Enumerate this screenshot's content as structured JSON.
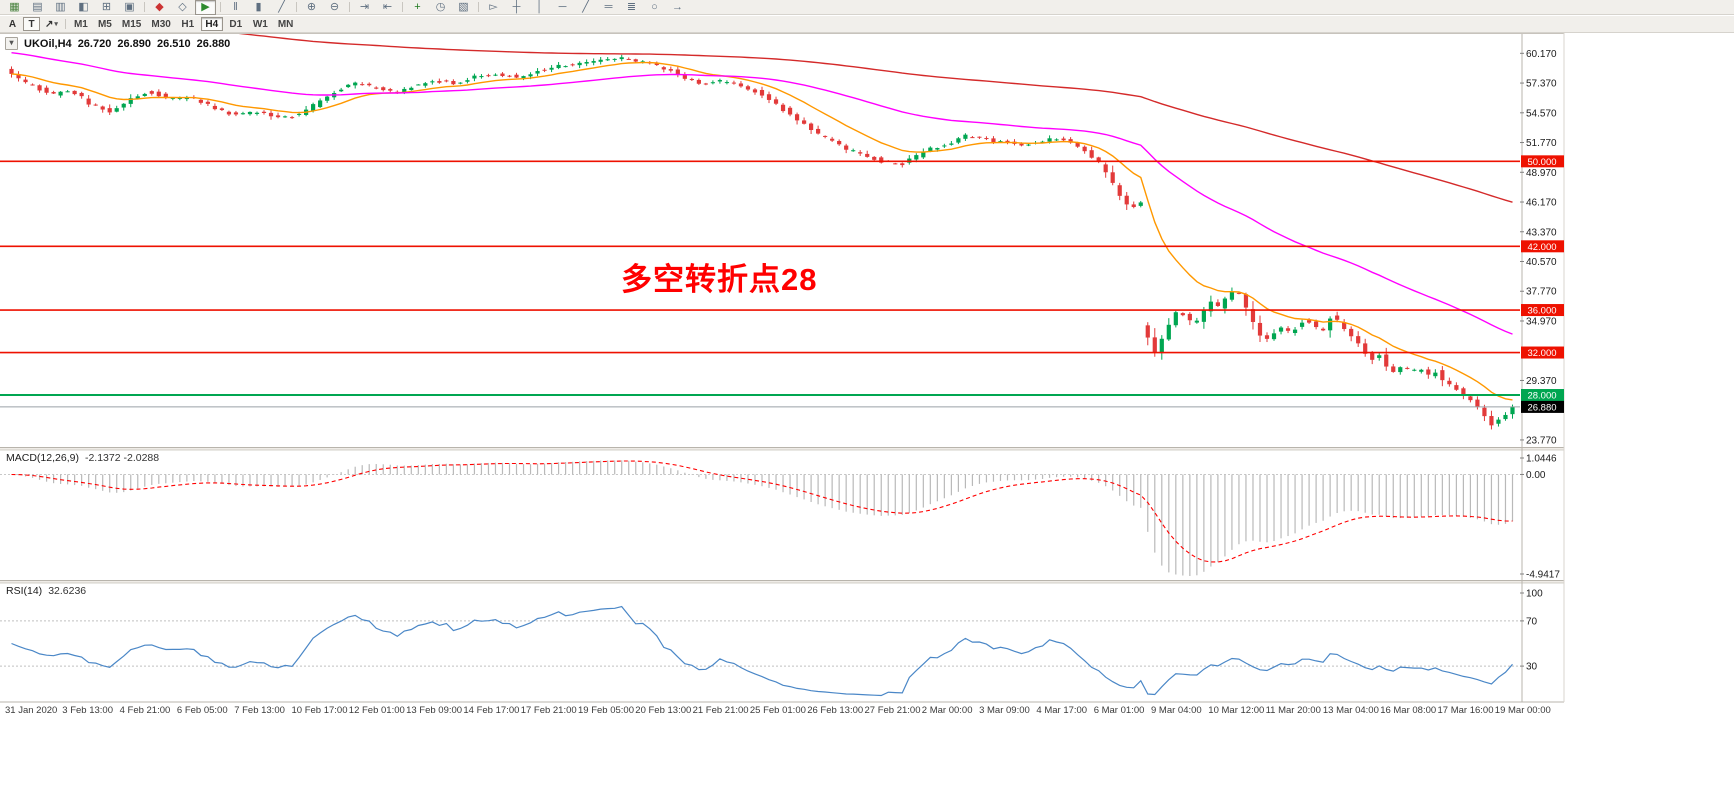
{
  "toolbar": {
    "row1_groups": [
      [
        {
          "name": "new-chart",
          "glyph": "▦",
          "color": "#45803b"
        },
        {
          "name": "profiles",
          "glyph": "▤",
          "color": "#5f6f80"
        },
        {
          "name": "market-watch",
          "glyph": "▥",
          "color": "#5f6f80"
        },
        {
          "name": "data-window",
          "glyph": "◧",
          "color": "#5f6f80"
        },
        {
          "name": "navigator",
          "glyph": "⊞",
          "color": "#5f6f80"
        },
        {
          "name": "terminal",
          "glyph": "▣",
          "color": "#5f6f80"
        }
      ],
      [
        {
          "name": "new-order",
          "glyph": "◆",
          "color": "#cc3333"
        },
        {
          "name": "metaeditor",
          "glyph": "◇",
          "color": "#5f6f80"
        },
        {
          "name": "autotrading",
          "glyph": "▶",
          "color": "#2e8b2e",
          "pressed": true
        }
      ],
      [
        {
          "name": "bar-chart",
          "glyph": "‖",
          "color": "#5f6f80"
        },
        {
          "name": "candlestick-chart",
          "glyph": "▮",
          "color": "#5f6f80"
        },
        {
          "name": "line-chart",
          "glyph": "╱",
          "color": "#5f6f80"
        }
      ],
      [
        {
          "name": "zoom-in",
          "glyph": "⊕",
          "color": "#5f6f80"
        },
        {
          "name": "zoom-out",
          "glyph": "⊖",
          "color": "#5f6f80"
        }
      ],
      [
        {
          "name": "auto-scroll",
          "glyph": "⇥",
          "color": "#5f6f80"
        },
        {
          "name": "chart-shift",
          "glyph": "⇤",
          "color": "#5f6f80"
        }
      ],
      [
        {
          "name": "indicators",
          "glyph": "+",
          "color": "#1f7a1f"
        },
        {
          "name": "periods",
          "glyph": "◷",
          "color": "#5f6f80"
        },
        {
          "name": "templates",
          "glyph": "▧",
          "color": "#5f6f80"
        }
      ],
      [
        {
          "name": "cursor",
          "glyph": "▻",
          "color": "#5f6f80"
        },
        {
          "name": "crosshair",
          "glyph": "┼",
          "color": "#5f6f80"
        },
        {
          "name": "vertical-line",
          "glyph": "│",
          "color": "#5f6f80"
        },
        {
          "name": "horizontal-line",
          "glyph": "─",
          "color": "#5f6f80"
        },
        {
          "name": "trendline",
          "glyph": "╱",
          "color": "#5f6f80"
        },
        {
          "name": "channel",
          "glyph": "═",
          "color": "#5f6f80"
        },
        {
          "name": "fibonacci",
          "glyph": "≣",
          "color": "#5f6f80"
        },
        {
          "name": "shapes",
          "glyph": "○",
          "color": "#5f6f80"
        },
        {
          "name": "arrows",
          "glyph": "→",
          "color": "#5f6f80"
        }
      ]
    ],
    "row2": {
      "a_label": "A",
      "t_label": "T",
      "draw_glyph": "↗",
      "caret": "▾",
      "timeframes": [
        "M1",
        "M5",
        "M15",
        "M30",
        "H1",
        "H4",
        "D1",
        "W1",
        "MN"
      ],
      "active": "H4"
    }
  },
  "chart": {
    "header": {
      "collapse_glyph": "▾",
      "symbol_period": "UKOil,H4",
      "open": "26.720",
      "high": "26.890",
      "low": "26.510",
      "close": "26.880"
    },
    "annotation": {
      "text": "多空转折点28",
      "color": "#ff0000"
    }
  },
  "chart_data": {
    "type": "candlestick",
    "symbol": "UKOil",
    "timeframe": "H4",
    "price_axis": {
      "max": 61.8,
      "min": 23.2,
      "ticks": [
        {
          "v": 60.17,
          "label": "60.170"
        },
        {
          "v": 57.37,
          "label": "57.370"
        },
        {
          "v": 54.57,
          "label": "54.570"
        },
        {
          "v": 51.77,
          "label": "51.770"
        },
        {
          "v": 48.97,
          "label": "48.970"
        },
        {
          "v": 46.17,
          "label": "46.170"
        },
        {
          "v": 43.37,
          "label": "43.370"
        },
        {
          "v": 40.57,
          "label": "40.570"
        },
        {
          "v": 37.77,
          "label": "37.770"
        },
        {
          "v": 34.97,
          "label": "34.970"
        },
        {
          "v": 29.37,
          "label": "29.370"
        },
        {
          "v": 23.77,
          "label": "23.770"
        }
      ]
    },
    "levels": [
      {
        "price": 50.0,
        "label": "50.000",
        "color": "#ee1100",
        "badge": "#ee1100",
        "width": 1.6
      },
      {
        "price": 42.0,
        "label": "42.000",
        "color": "#ee1100",
        "badge": "#ee1100",
        "width": 1.6
      },
      {
        "price": 36.0,
        "label": "36.000",
        "color": "#ee1100",
        "badge": "#ee1100",
        "width": 1.6
      },
      {
        "price": 32.0,
        "label": "32.000",
        "color": "#ee1100",
        "badge": "#ee1100",
        "width": 1.6
      },
      {
        "price": 28.0,
        "label": "28.000",
        "color": "#00a651",
        "badge": "#00a651",
        "width": 2
      },
      {
        "price": 26.88,
        "label": "26.880",
        "color": "#9aa0a6",
        "badge": "#000000",
        "width": 1,
        "current": true
      }
    ],
    "candle_count": 215,
    "colors": {
      "up": "#00a651",
      "down": "#e23a3a",
      "ma_fast": "#ff9800",
      "ma_mid": "#ff00ff",
      "ma_slow": "#d42a2a"
    },
    "moving_averages": [
      {
        "period": 13,
        "color_key": "ma_fast"
      },
      {
        "period": 55,
        "color_key": "ma_mid",
        "seed": 60.3
      },
      {
        "period": 200,
        "color_key": "ma_slow",
        "seed": 64.5
      }
    ],
    "close_path": [
      [
        8,
        58.6
      ],
      [
        30,
        57.3
      ],
      [
        55,
        56.3
      ],
      [
        75,
        56.7
      ],
      [
        95,
        55.3
      ],
      [
        112,
        54.7
      ],
      [
        132,
        55.8
      ],
      [
        152,
        56.6
      ],
      [
        172,
        55.9
      ],
      [
        192,
        56.1
      ],
      [
        215,
        55.1
      ],
      [
        238,
        54.4
      ],
      [
        262,
        54.7
      ],
      [
        286,
        54.0
      ],
      [
        308,
        54.7
      ],
      [
        332,
        56.2
      ],
      [
        356,
        57.4
      ],
      [
        378,
        57.0
      ],
      [
        398,
        56.4
      ],
      [
        418,
        57.2
      ],
      [
        438,
        57.6
      ],
      [
        458,
        57.3
      ],
      [
        478,
        58.0
      ],
      [
        498,
        58.3
      ],
      [
        518,
        57.9
      ],
      [
        538,
        58.4
      ],
      [
        558,
        58.9
      ],
      [
        578,
        59.2
      ],
      [
        602,
        59.5
      ],
      [
        626,
        59.8
      ],
      [
        646,
        59.3
      ],
      [
        666,
        58.8
      ],
      [
        682,
        58.2
      ],
      [
        702,
        57.2
      ],
      [
        722,
        57.6
      ],
      [
        742,
        57.1
      ],
      [
        762,
        56.5
      ],
      [
        778,
        55.5
      ],
      [
        792,
        54.5
      ],
      [
        806,
        53.5
      ],
      [
        822,
        52.5
      ],
      [
        842,
        51.5
      ],
      [
        862,
        50.7
      ],
      [
        882,
        50.1
      ],
      [
        902,
        49.6
      ],
      [
        918,
        50.4
      ],
      [
        934,
        51.2
      ],
      [
        952,
        51.7
      ],
      [
        968,
        52.4
      ],
      [
        984,
        52.1
      ],
      [
        1004,
        51.8
      ],
      [
        1024,
        51.5
      ],
      [
        1044,
        51.9
      ],
      [
        1062,
        52.2
      ],
      [
        1078,
        51.6
      ],
      [
        1092,
        50.7
      ],
      [
        1104,
        49.7
      ],
      [
        1114,
        48.2
      ],
      [
        1124,
        46.7
      ],
      [
        1134,
        45.6
      ],
      [
        1144,
        46.1
      ],
      [
        1149,
        45.8
      ],
      [
        1151,
        33.5
      ],
      [
        1158,
        31.8
      ],
      [
        1166,
        33.4
      ],
      [
        1174,
        35.0
      ],
      [
        1182,
        36.1
      ],
      [
        1190,
        35.2
      ],
      [
        1198,
        34.5
      ],
      [
        1206,
        35.7
      ],
      [
        1214,
        36.9
      ],
      [
        1222,
        36.2
      ],
      [
        1230,
        37.2
      ],
      [
        1238,
        38.0
      ],
      [
        1246,
        36.9
      ],
      [
        1254,
        35.3
      ],
      [
        1262,
        33.8
      ],
      [
        1270,
        33.3
      ],
      [
        1278,
        33.9
      ],
      [
        1286,
        34.5
      ],
      [
        1294,
        33.7
      ],
      [
        1302,
        34.7
      ],
      [
        1310,
        35.2
      ],
      [
        1318,
        34.4
      ],
      [
        1326,
        34.1
      ],
      [
        1334,
        35.4
      ],
      [
        1342,
        34.9
      ],
      [
        1350,
        34.1
      ],
      [
        1358,
        33.3
      ],
      [
        1366,
        32.1
      ],
      [
        1374,
        31.2
      ],
      [
        1382,
        31.9
      ],
      [
        1390,
        30.6
      ],
      [
        1398,
        30.2
      ],
      [
        1406,
        30.9
      ],
      [
        1414,
        30.1
      ],
      [
        1422,
        30.5
      ],
      [
        1430,
        29.8
      ],
      [
        1438,
        30.3
      ],
      [
        1446,
        29.4
      ],
      [
        1454,
        28.8
      ],
      [
        1462,
        28.4
      ],
      [
        1470,
        27.8
      ],
      [
        1478,
        27.1
      ],
      [
        1486,
        26.3
      ],
      [
        1494,
        25.1
      ],
      [
        1502,
        25.7
      ],
      [
        1510,
        26.3
      ],
      [
        1516,
        26.88
      ]
    ],
    "indicators": [
      {
        "name": "MACD",
        "label": "MACD(12,26,9)",
        "values": "-2.1372 -2.0288",
        "fast": 12,
        "slow": 26,
        "signal": 9,
        "max": 1.0446,
        "min": -4.9417,
        "scale_ticks": [
          {
            "v": 1.0446,
            "label": "1.0446"
          },
          {
            "v": 0,
            "label": "0.00"
          },
          {
            "v": -4.9417,
            "label": "-4.9417"
          }
        ],
        "hist_color": "#b9b9b9",
        "signal_color": "#ff0000"
      },
      {
        "name": "RSI",
        "label": "RSI(14)",
        "values": "32.6236",
        "period": 14,
        "max": 100,
        "min": 0,
        "levels": [
          70,
          30
        ],
        "scale_ticks": [
          {
            "v": 100,
            "label": "100"
          },
          {
            "v": 70,
            "label": "70"
          },
          {
            "v": 30,
            "label": "30"
          }
        ],
        "color": "#4a87c7"
      }
    ],
    "time_axis": [
      "31 Jan 2020",
      "3 Feb 13:00",
      "4 Feb 21:00",
      "6 Feb 05:00",
      "7 Feb 13:00",
      "10 Feb 17:00",
      "12 Feb 01:00",
      "13 Feb 09:00",
      "14 Feb 17:00",
      "17 Feb 21:00",
      "19 Feb 05:00",
      "20 Feb 13:00",
      "21 Feb 21:00",
      "25 Feb 01:00",
      "26 Feb 13:00",
      "27 Feb 21:00",
      "2 Mar 00:00",
      "3 Mar 09:00",
      "4 Mar 17:00",
      "6 Mar 01:00",
      "9 Mar 04:00",
      "10 Mar 12:00",
      "11 Mar 20:00",
      "13 Mar 04:00",
      "16 Mar 08:00",
      "17 Mar 16:00",
      "19 Mar 00:00"
    ]
  }
}
